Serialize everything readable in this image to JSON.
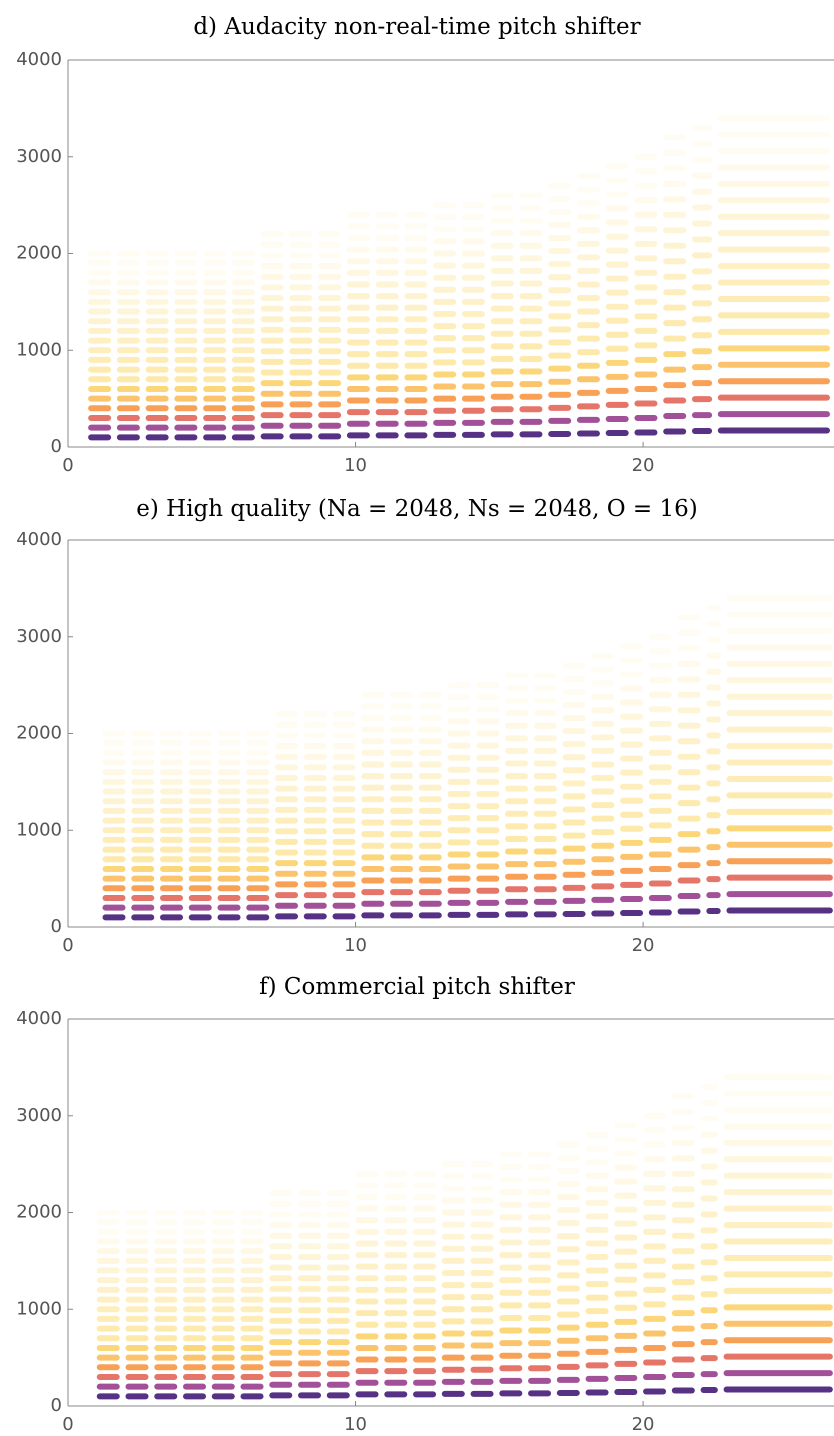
{
  "chart_data": [
    {
      "type": "spectrogram",
      "title": "d) Audacity non-real-time pitch shifter",
      "xlim": [
        0,
        26.64
      ],
      "xticks": [
        0,
        10,
        20
      ],
      "ylim": [
        0,
        4000
      ],
      "yticks": [
        0,
        1000,
        2000,
        3000,
        4000
      ],
      "harmonics": 20,
      "notes": {
        "start": [
          0.7,
          1.7,
          2.7,
          3.7,
          4.7,
          5.7,
          6.7,
          7.7,
          8.7,
          9.7,
          10.7,
          11.7,
          12.7,
          13.7,
          14.7,
          15.7,
          16.7,
          17.7,
          18.7,
          19.7,
          20.7,
          21.7,
          22.6
        ],
        "end": [
          1.5,
          2.5,
          3.5,
          4.5,
          5.5,
          6.5,
          7.5,
          8.5,
          9.5,
          10.5,
          11.5,
          12.5,
          13.5,
          14.5,
          15.5,
          16.5,
          17.5,
          18.5,
          19.5,
          20.5,
          21.5,
          22.4,
          26.5
        ],
        "f0": [
          100,
          100,
          100,
          100,
          100,
          100,
          110,
          110,
          110,
          120,
          120,
          120,
          125,
          125,
          130,
          130,
          135,
          140,
          145,
          150,
          160,
          165,
          170
        ]
      }
    },
    {
      "type": "spectrogram",
      "title": "e) High quality (Na = 2048, Ns = 2048, O = 16)",
      "xlim": [
        0,
        26.64
      ],
      "xticks": [
        0,
        10,
        20
      ],
      "ylim": [
        0,
        4000
      ],
      "yticks": [
        0,
        1000,
        2000,
        3000,
        4000
      ],
      "harmonics": 20,
      "notes": {
        "start": [
          1.2,
          2.2,
          3.2,
          4.2,
          5.2,
          6.2,
          7.2,
          8.2,
          9.2,
          10.2,
          11.2,
          12.2,
          13.2,
          14.2,
          15.2,
          16.2,
          17.2,
          18.2,
          19.2,
          20.2,
          21.2,
          22.2,
          22.9
        ],
        "end": [
          2.0,
          3.0,
          4.0,
          5.0,
          6.0,
          7.0,
          8.0,
          9.0,
          10.0,
          11.0,
          12.0,
          13.0,
          14.0,
          15.0,
          16.0,
          17.0,
          18.0,
          19.0,
          20.0,
          21.0,
          22.0,
          22.7,
          26.6
        ],
        "f0": [
          100,
          100,
          100,
          100,
          100,
          100,
          110,
          110,
          110,
          120,
          120,
          120,
          125,
          125,
          130,
          130,
          135,
          140,
          145,
          150,
          160,
          165,
          170
        ]
      }
    },
    {
      "type": "spectrogram",
      "title": "f) Commercial pitch shifter",
      "xlim": [
        0,
        26.64
      ],
      "xticks": [
        0,
        10,
        20
      ],
      "ylim": [
        0,
        4000
      ],
      "yticks": [
        0,
        1000,
        2000,
        3000,
        4000
      ],
      "harmonics": 20,
      "notes": {
        "start": [
          1.0,
          2.0,
          3.0,
          4.0,
          5.0,
          6.0,
          7.0,
          8.0,
          9.0,
          10.0,
          11.0,
          12.0,
          13.0,
          14.0,
          15.0,
          16.0,
          17.0,
          18.0,
          19.0,
          20.0,
          21.0,
          22.0,
          22.8
        ],
        "end": [
          1.8,
          2.8,
          3.8,
          4.8,
          5.8,
          6.8,
          7.8,
          8.8,
          9.8,
          10.8,
          11.8,
          12.8,
          13.8,
          14.8,
          15.8,
          16.8,
          17.8,
          18.8,
          19.8,
          20.8,
          21.8,
          22.6,
          26.6
        ],
        "f0": [
          100,
          100,
          100,
          100,
          100,
          100,
          110,
          110,
          110,
          120,
          120,
          120,
          125,
          125,
          130,
          130,
          135,
          140,
          145,
          150,
          160,
          165,
          170
        ]
      }
    }
  ]
}
